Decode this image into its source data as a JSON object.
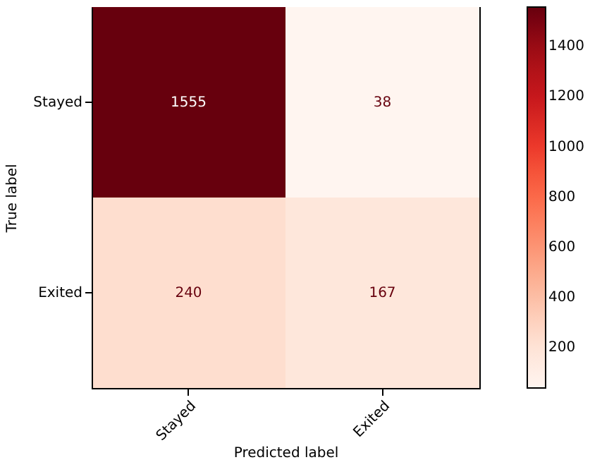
{
  "chart_data": {
    "type": "heatmap",
    "xlabel": "Predicted label",
    "ylabel": "True label",
    "categories": [
      "Stayed",
      "Exited"
    ],
    "y_categories": [
      "Stayed",
      "Exited"
    ],
    "cells": [
      [
        1555,
        38
      ],
      [
        240,
        167
      ]
    ],
    "data_labels": true,
    "clim": [
      38,
      1555
    ],
    "cticks": [
      200,
      400,
      600,
      800,
      1000,
      1200,
      1400
    ],
    "grid": false
  }
}
